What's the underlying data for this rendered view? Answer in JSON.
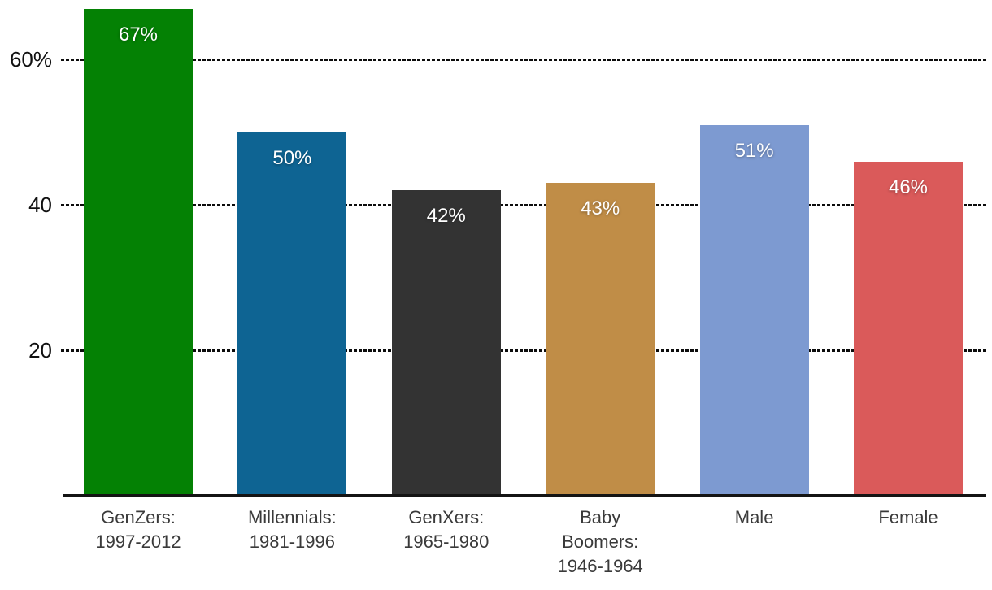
{
  "chart_data": {
    "type": "bar",
    "title": "",
    "xlabel": "",
    "ylabel": "",
    "categories": [
      "GenZers:\n1997-2012",
      "Millennials:\n1981-1996",
      "GenXers:\n1965-1980",
      "Baby\nBoomers:\n1946-1964",
      "Male",
      "Female"
    ],
    "values": [
      67,
      50,
      42,
      43,
      51,
      46
    ],
    "bar_value_labels": [
      "67%",
      "50%",
      "42%",
      "43%",
      "51%",
      "46%"
    ],
    "bar_colors": [
      "#048104",
      "#0e6493",
      "#333333",
      "#c08d47",
      "#7d9ad1",
      "#da5a5a"
    ],
    "ylim": [
      0,
      68.2
    ],
    "yticks": [
      {
        "value": 20,
        "label": "20"
      },
      {
        "value": 40,
        "label": "40"
      },
      {
        "value": 60,
        "label": "60%"
      }
    ],
    "grid": "horizontal-dashed",
    "gridline_color": "#0d0d0d",
    "axis_line_color": "#141414",
    "value_label_text_color": "#ffffff",
    "background_color": "#ffffff",
    "legend": "none"
  }
}
